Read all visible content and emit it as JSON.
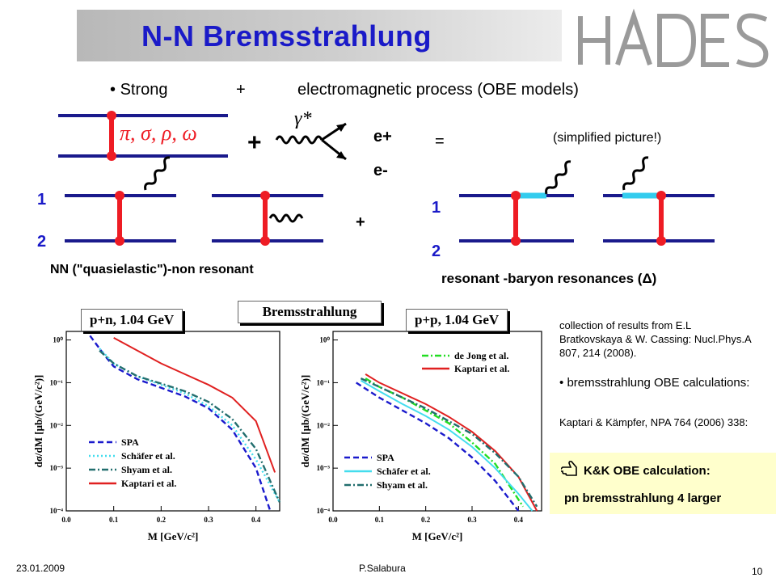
{
  "title": "N-N Bremsstrahlung",
  "logo_text": "HADES",
  "bullet": {
    "strong": "Strong",
    "plus": "+",
    "em": "electromagnetic process  (OBE models)"
  },
  "diagram": {
    "mesons": "π, σ, ρ, ω",
    "gamma": "γ*",
    "plus_big": "+",
    "e_plus": "e+",
    "e_minus": "e-",
    "equals": "=",
    "simplified": "(simplified picture!)",
    "label1_left": "1",
    "label2_left": "2",
    "plus_mid": "+",
    "label1_right": "1",
    "label2_right": "2",
    "nn_label": "NN (\"quasielastic\")-non resonant",
    "res_label": "resonant -baryon resonances (Δ)"
  },
  "tags": {
    "left": "p+n,  1.04 GeV",
    "center": "Bremsstrahlung",
    "right": "p+p,  1.04 GeV"
  },
  "chart_data": [
    {
      "type": "line",
      "title": "p+n,  1.04 GeV",
      "xlabel": "M  [GeV/c²]",
      "ylabel": "dσ/dM  [μb/(GeV/c²)]",
      "xlim": [
        0.0,
        0.45
      ],
      "ylim_log10": [
        -4,
        0.2
      ],
      "x_ticks": [
        "0.0",
        "0.1",
        "0.2",
        "0.3",
        "0.4"
      ],
      "y_ticks": [
        "10⁰",
        "10⁻¹",
        "10⁻²",
        "10⁻³",
        "10⁻⁴"
      ],
      "legend": "bottom-left",
      "series": [
        {
          "name": "SPA",
          "color": "#1a1acc",
          "style": "dash",
          "x": [
            0.05,
            0.08,
            0.1,
            0.15,
            0.2,
            0.25,
            0.3,
            0.35,
            0.4,
            0.43
          ],
          "log10y": [
            0.1,
            -0.35,
            -0.62,
            -0.92,
            -1.12,
            -1.32,
            -1.6,
            -2.1,
            -3.0,
            -4.0
          ]
        },
        {
          "name": "Schäfer et al.",
          "color": "#44ddee",
          "style": "dot",
          "x": [
            0.07,
            0.1,
            0.15,
            0.2,
            0.25,
            0.3,
            0.35,
            0.4,
            0.45
          ],
          "log10y": [
            -0.2,
            -0.55,
            -0.85,
            -1.05,
            -1.25,
            -1.55,
            -2.0,
            -2.8,
            -3.8
          ]
        },
        {
          "name": "Shyam et al.",
          "color": "#226e6e",
          "style": "dashdot",
          "x": [
            0.07,
            0.1,
            0.15,
            0.2,
            0.25,
            0.3,
            0.35,
            0.4,
            0.45
          ],
          "log10y": [
            -0.25,
            -0.55,
            -0.85,
            -1.02,
            -1.2,
            -1.45,
            -1.85,
            -2.55,
            -3.8
          ]
        },
        {
          "name": "Kaptari et al.",
          "color": "#e02020",
          "style": "solid",
          "x": [
            0.1,
            0.15,
            0.2,
            0.25,
            0.3,
            0.35,
            0.4,
            0.44
          ],
          "log10y": [
            0.05,
            -0.25,
            -0.55,
            -0.8,
            -1.05,
            -1.35,
            -1.9,
            -3.1
          ]
        }
      ]
    },
    {
      "type": "line",
      "title": "p+p,  1.04 GeV",
      "xlabel": "M  [GeV/c²]",
      "ylabel": "dσ/dM  [μb/(GeV/c²)]",
      "xlim": [
        0.0,
        0.45
      ],
      "ylim_log10": [
        -4,
        0.2
      ],
      "x_ticks": [
        "0.0",
        "0.1",
        "0.2",
        "0.3",
        "0.4"
      ],
      "y_ticks": [
        "10⁰",
        "10⁻¹",
        "10⁻²",
        "10⁻³",
        "10⁻⁴"
      ],
      "legend_top": "top-right",
      "legend_bottom": "bottom-left",
      "series": [
        {
          "name": "de Jong et al.",
          "color": "#22dd22",
          "style": "dashdot",
          "x": [
            0.07,
            0.1,
            0.15,
            0.2,
            0.25,
            0.3,
            0.35,
            0.38,
            0.41
          ],
          "log10y": [
            -0.9,
            -1.1,
            -1.35,
            -1.65,
            -1.95,
            -2.4,
            -2.9,
            -3.4,
            -3.9
          ]
        },
        {
          "name": "Kaptari et al.",
          "color": "#e02020",
          "style": "solid",
          "x": [
            0.07,
            0.1,
            0.15,
            0.2,
            0.25,
            0.3,
            0.35,
            0.4,
            0.44
          ],
          "log10y": [
            -0.8,
            -1.0,
            -1.25,
            -1.5,
            -1.8,
            -2.15,
            -2.6,
            -3.2,
            -4.0
          ]
        },
        {
          "name": "SPA",
          "color": "#1a1acc",
          "style": "dash",
          "x": [
            0.05,
            0.1,
            0.15,
            0.2,
            0.25,
            0.3,
            0.35,
            0.4
          ],
          "log10y": [
            -1.0,
            -1.35,
            -1.65,
            -1.95,
            -2.3,
            -2.75,
            -3.3,
            -4.0
          ]
        },
        {
          "name": "Schäfer et al.",
          "color": "#44ddee",
          "style": "solid",
          "x": [
            0.06,
            0.1,
            0.15,
            0.2,
            0.25,
            0.3,
            0.35,
            0.4,
            0.43
          ],
          "log10y": [
            -0.95,
            -1.2,
            -1.5,
            -1.78,
            -2.1,
            -2.5,
            -3.0,
            -3.6,
            -4.0
          ]
        },
        {
          "name": "Shyam et al.",
          "color": "#226e6e",
          "style": "dashdot",
          "x": [
            0.06,
            0.1,
            0.15,
            0.2,
            0.25,
            0.3,
            0.35,
            0.4,
            0.44
          ],
          "log10y": [
            -0.9,
            -1.1,
            -1.35,
            -1.6,
            -1.9,
            -2.2,
            -2.65,
            -3.2,
            -3.9
          ]
        }
      ]
    }
  ],
  "side": {
    "collection": "collection of results from E.L Bratkovskaya & W. Cassing: Nucl.Phys.A 807, 214 (2008).",
    "bullet2": "bremsstrahlung OBE calculations:",
    "ref": "Kaptari & Kämpfer, NPA 764 (2006) 338:",
    "kk_line1": "K&K OBE calculation:",
    "kk_line2": "pn bremsstrahlung 4 larger"
  },
  "footer": {
    "date": "23.01.2009",
    "author": "P.Salabura",
    "page": "10"
  },
  "colors": {
    "title": "#1a1ac8",
    "line": "#1a1a8c",
    "vertex": "#ee1c24",
    "resonance": "#33ccee"
  }
}
